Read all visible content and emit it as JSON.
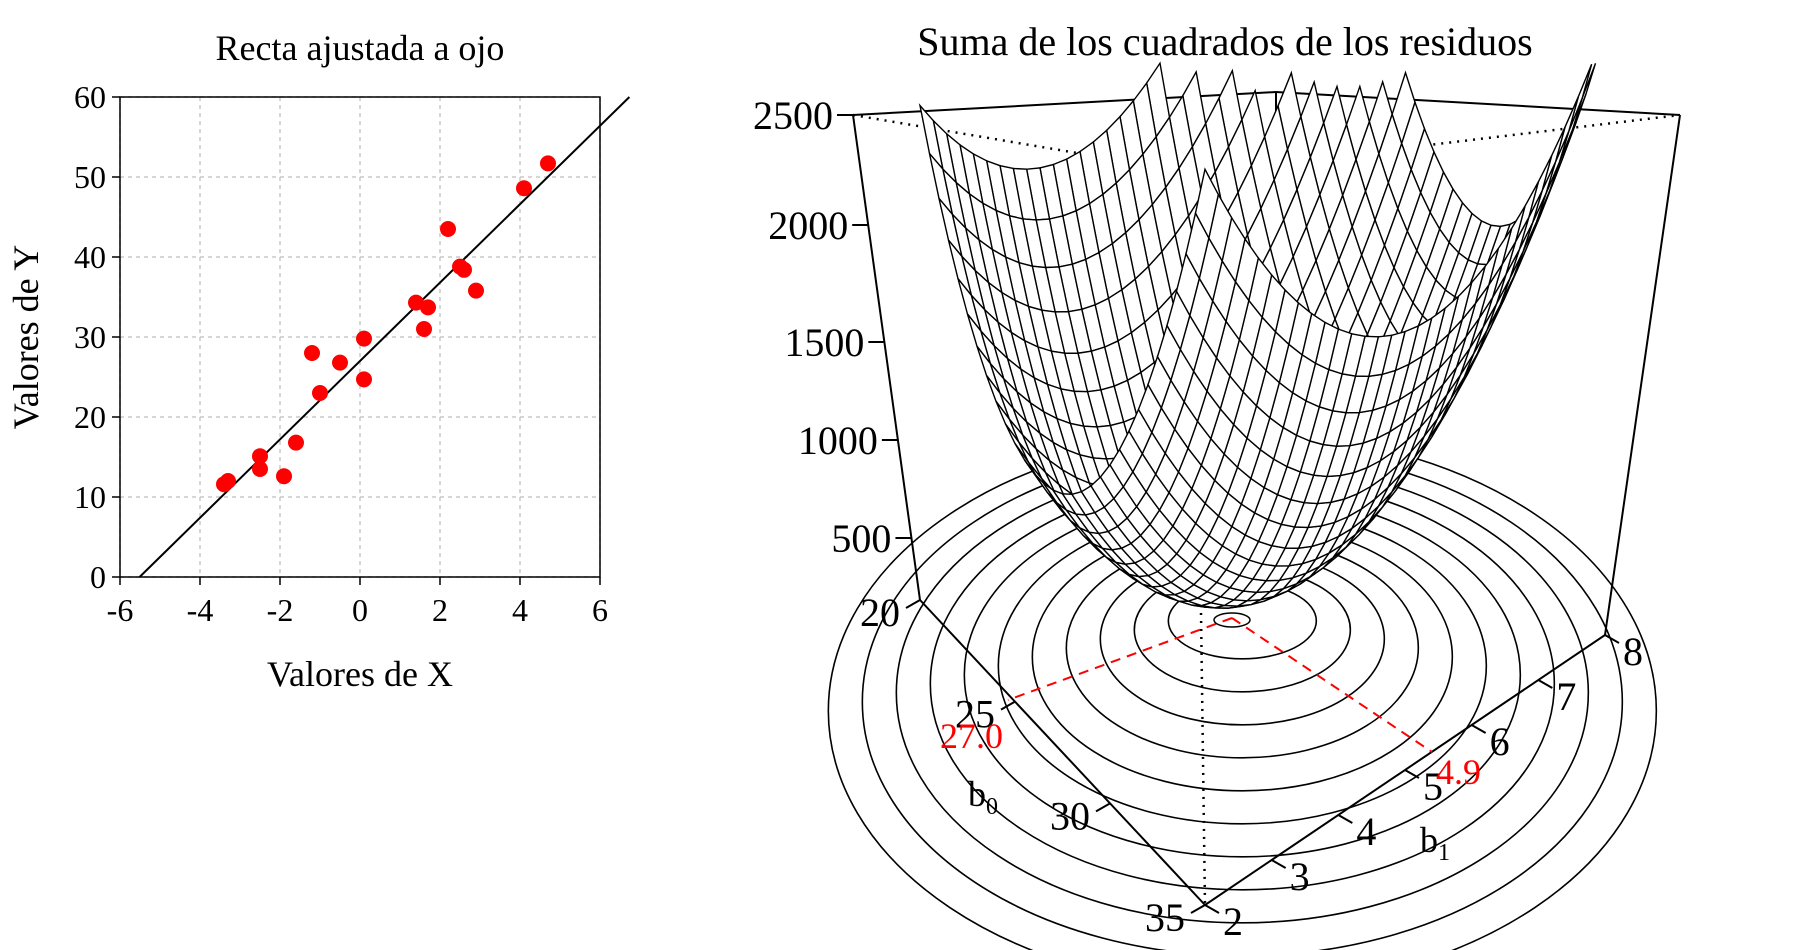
{
  "chart_data": [
    {
      "type": "scatter",
      "title": "Recta ajustada a ojo",
      "xlabel": "Valores de X",
      "ylabel": "Valores de Y",
      "xlim": [
        -6,
        6
      ],
      "ylim": [
        0,
        60
      ],
      "xticks": [
        "-6",
        "-4",
        "-2",
        "0",
        "2",
        "4",
        "6"
      ],
      "yticks": [
        "0",
        "10",
        "20",
        "30",
        "40",
        "50",
        "60"
      ],
      "grid": true,
      "point_color": "#ff0000",
      "points": [
        {
          "x": -3.4,
          "y": 11.6
        },
        {
          "x": -3.3,
          "y": 12.0
        },
        {
          "x": -2.5,
          "y": 13.5
        },
        {
          "x": -2.5,
          "y": 15.1
        },
        {
          "x": -1.9,
          "y": 12.6
        },
        {
          "x": -1.6,
          "y": 16.8
        },
        {
          "x": -1.2,
          "y": 28.0
        },
        {
          "x": -1.0,
          "y": 23.0
        },
        {
          "x": -0.5,
          "y": 26.8
        },
        {
          "x": 0.1,
          "y": 24.7
        },
        {
          "x": 0.1,
          "y": 29.8
        },
        {
          "x": 1.4,
          "y": 34.3
        },
        {
          "x": 1.6,
          "y": 31.0
        },
        {
          "x": 1.7,
          "y": 33.7
        },
        {
          "x": 2.2,
          "y": 43.5
        },
        {
          "x": 2.5,
          "y": 38.8
        },
        {
          "x": 2.6,
          "y": 38.4
        },
        {
          "x": 2.9,
          "y": 35.8
        },
        {
          "x": 4.1,
          "y": 48.6
        },
        {
          "x": 4.7,
          "y": 51.7
        }
      ],
      "fit_line": {
        "b0": 27.0,
        "b1": 4.9,
        "color": "#000000"
      }
    },
    {
      "type": "surface3d",
      "title": "Suma de los cuadrados de los residuos",
      "z_ticks": [
        "500",
        "1000",
        "1500",
        "2000",
        "2500"
      ],
      "z_range": [
        0,
        2500
      ],
      "b0_ticks": [
        "20",
        "25",
        "30",
        "35"
      ],
      "b0_range": [
        20,
        35
      ],
      "b1_ticks": [
        "2",
        "3",
        "4",
        "5",
        "6",
        "7",
        "8"
      ],
      "b1_range": [
        2,
        8
      ],
      "b0_label": "b",
      "b0_label_sub": "0",
      "b1_label": "b",
      "b1_label_sub": "1",
      "minimum": {
        "b0": "27.0",
        "b1": "4.9",
        "color": "#ff0000"
      }
    }
  ]
}
